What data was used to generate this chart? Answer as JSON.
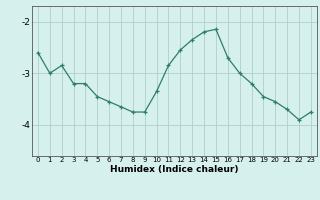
{
  "x": [
    0,
    1,
    2,
    3,
    4,
    5,
    6,
    7,
    8,
    9,
    10,
    11,
    12,
    13,
    14,
    15,
    16,
    17,
    18,
    19,
    20,
    21,
    22,
    23
  ],
  "y": [
    -2.6,
    -3.0,
    -2.85,
    -3.2,
    -3.2,
    -3.45,
    -3.55,
    -3.65,
    -3.75,
    -3.75,
    -3.35,
    -2.85,
    -2.55,
    -2.35,
    -2.2,
    -2.15,
    -2.7,
    -3.0,
    -3.2,
    -3.45,
    -3.55,
    -3.7,
    -3.9,
    -3.75
  ],
  "line_color": "#2e7d6e",
  "marker": "+",
  "marker_size": 3,
  "bg_color": "#d6f0ee",
  "grid_color": "#b0cfc9",
  "xlabel": "Humidex (Indice chaleur)",
  "yticks": [
    -4,
    -3,
    -2
  ],
  "ylim": [
    -4.6,
    -1.7
  ],
  "xlim": [
    -0.5,
    23.5
  ],
  "xtick_fontsize": 5.0,
  "ytick_fontsize": 6.5,
  "xlabel_fontsize": 6.5
}
